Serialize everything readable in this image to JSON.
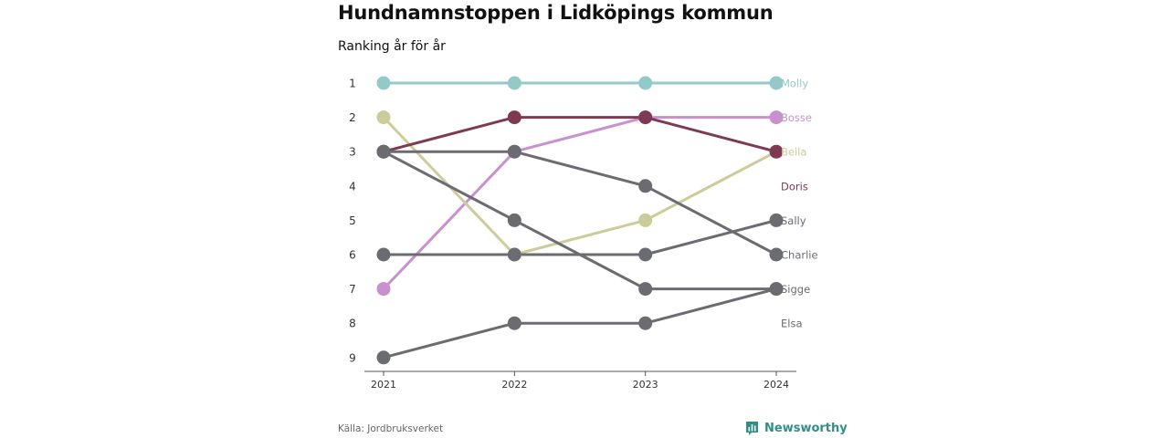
{
  "header": {
    "title": "Hundnamnstoppen i Lidköpings kommun",
    "subtitle": "Ranking år för år"
  },
  "footer": {
    "source": "Källa: Jordbruksverket",
    "brand": "Newsworthy"
  },
  "colors": {
    "gray": "#6b6b72",
    "brand": "#2f8f86"
  },
  "chart_data": {
    "type": "line",
    "chart_kind": "bump",
    "x": [
      "2021",
      "2022",
      "2023",
      "2024"
    ],
    "y_ticks": [
      "1",
      "2",
      "3",
      "4",
      "5",
      "6",
      "7",
      "8",
      "9"
    ],
    "ylim": [
      1,
      9
    ],
    "y_reversed": true,
    "grid": false,
    "series": [
      {
        "name": "Molly",
        "color": "#93c9c8",
        "ranks": [
          1,
          1,
          1,
          1
        ]
      },
      {
        "name": "Bosse",
        "color": "#c890cc",
        "ranks": [
          7,
          3,
          2,
          2
        ]
      },
      {
        "name": "Bella",
        "color": "#cccc9a",
        "ranks": [
          2,
          6,
          5,
          3
        ]
      },
      {
        "name": "Doris",
        "color": "#7d3a52",
        "ranks": [
          3,
          2,
          2,
          3
        ]
      },
      {
        "name": "Sally",
        "color": "#6b6b72",
        "ranks": [
          6,
          6,
          6,
          5
        ]
      },
      {
        "name": "Charlie",
        "color": "#6b6b72",
        "ranks": [
          3,
          3,
          4,
          6
        ]
      },
      {
        "name": "Sigge",
        "color": "#6b6b72",
        "ranks": [
          3,
          5,
          7,
          7
        ]
      },
      {
        "name": "Elsa",
        "color": "#6b6b72",
        "ranks": [
          9,
          8,
          8,
          7
        ]
      }
    ],
    "end_labels": [
      {
        "text": "Molly",
        "rank": 1,
        "color": "#93c9c8"
      },
      {
        "text": "Bosse",
        "rank": 2,
        "color": "#c890cc"
      },
      {
        "text": "Bella",
        "rank": 3,
        "color": "#cccc9a"
      },
      {
        "text": "Doris",
        "rank": 4,
        "color": "#7d3a52"
      },
      {
        "text": "Sally",
        "rank": 5,
        "color": "#6b6b72"
      },
      {
        "text": "Charlie",
        "rank": 6,
        "color": "#6b6b72"
      },
      {
        "text": "Sigge",
        "rank": 7,
        "color": "#6b6b72"
      },
      {
        "text": "Elsa",
        "rank": 8,
        "color": "#6b6b72"
      }
    ]
  }
}
